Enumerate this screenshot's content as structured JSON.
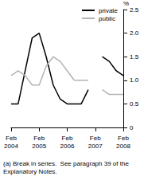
{
  "chart_data": {
    "type": "line",
    "y_label": "%",
    "categories": [
      "Feb 2004",
      null,
      null,
      null,
      "Feb 2005",
      null,
      null,
      null,
      "Feb 2006",
      null,
      null,
      null,
      "Feb 2007",
      null,
      null,
      null,
      "Feb 2008"
    ],
    "series": [
      {
        "name": "private",
        "color": "#000000",
        "values": [
          0.5,
          0.5,
          1.2,
          1.9,
          2.0,
          1.5,
          0.9,
          0.6,
          0.5,
          0.5,
          0.5,
          0.8,
          null,
          1.5,
          1.4,
          1.2,
          1.1
        ]
      },
      {
        "name": "public",
        "color": "#b3b3b3",
        "values": [
          1.1,
          1.2,
          1.1,
          0.9,
          0.9,
          1.3,
          1.5,
          1.4,
          1.2,
          1.0,
          1.0,
          1.0,
          null,
          0.8,
          0.7,
          0.7,
          0.7
        ]
      }
    ],
    "ylim": [
      0,
      2.5
    ],
    "yticks": [
      0,
      0.5,
      {
        "value": 1,
        "label": "1.0"
      },
      1.5,
      {
        "value": 2,
        "label": "2.0"
      },
      2.5
    ],
    "grid": false,
    "legend": "upper right",
    "annotations": [
      "(a) Break in series.  See paragraph 39 of the Explanatory Notes."
    ]
  }
}
